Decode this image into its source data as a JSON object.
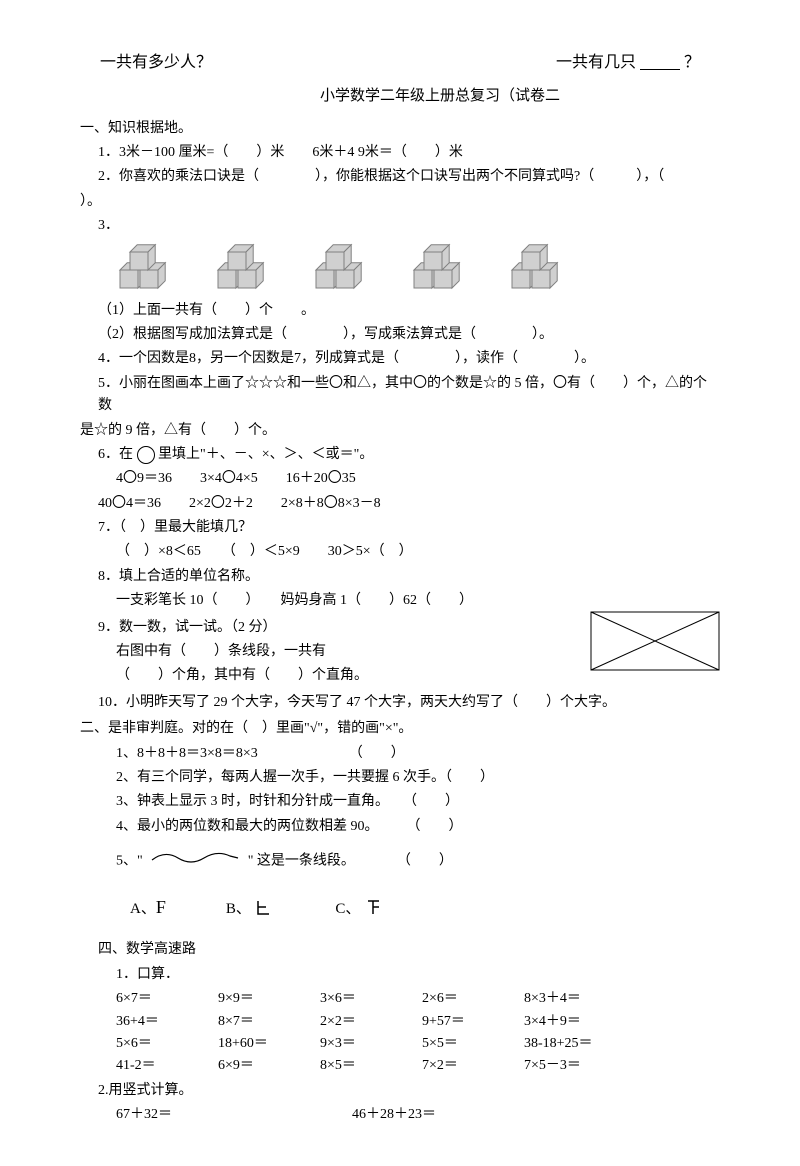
{
  "header": {
    "left": "一共有多少人？",
    "right_prefix": "一共有几只",
    "right_suffix": "？"
  },
  "title": "小学数学二年级上册总复习（试卷二",
  "section1": {
    "heading": "一、知识根据地。",
    "q1": "1．3米－100 厘米=（　　）米　　6米＋4 9米＝（　　）米",
    "q2_a": "2．你喜欢的乘法口诀是（　　　　），你能根据这个口诀写出两个不同算式吗?（　　　），（",
    "q2_b": "）。",
    "q3_label": "3．",
    "q3_1": "（1）上面一共有（　　）个　　。",
    "q3_2": "（2）根据图写成加法算式是（　　　　），写成乘法算式是（　　　　）。",
    "q4": "4．一个因数是8，另一个因数是7，列成算式是（　　　　），读作（　　　　）。",
    "q5_a": "5．小丽在图画本上画了☆☆☆和一些〇和△，其中〇的个数是☆的 5 倍，〇有（　　）个，△的个数",
    "q5_b": "是☆的 9 倍，△有（　　）个。",
    "q6_label": "6．在 ",
    "q6_text": " 里填上\"＋、－、×、＞、＜或＝\"。",
    "q6_row1": "4〇9＝36　　3×4〇4×5　　16＋20〇35",
    "q6_row2": "40〇4＝36　　2×2〇2＋2　　2×8＋8〇8×3－8",
    "q7_label": "7．（　）里最大能填几？",
    "q7_row": "（　）×8＜65　　（　）＜5×9　　30＞5×（　）",
    "q8_label": "8．填上合适的单位名称。",
    "q8_row": "一支彩笔长 10（　　）　　妈妈身高 1（　　）62（　　）",
    "q9_label": "9．数一数，试一试。（2 分）",
    "q9_row1": "右图中有（　　）条线段，一共有",
    "q9_row2": "（　　）个角，其中有（　　）个直角。",
    "q10": "10．小明昨天写了 29 个大字，今天写了 47 个大字，两天大约写了（　　）个大字。"
  },
  "section2": {
    "heading": "二、是非审判庭。对的在（　）里画\"√\"，错的画\"×\"。",
    "q1": "1、8＋8＋8＝3×8＝8×3　　　　　　　（　　）",
    "q2": "2、有三个同学，每两人握一次手，一共要握 6 次手。（　　）",
    "q3": "3、钟表上显示 3 时，时针和分针成一直角。　　（　　）",
    "q4": "4、最小的两位数和最大的两位数相差 90。　　　（　　）",
    "q5_a": "5、\"",
    "q5_b": "\" 这是一条线段。　　　　（　　）"
  },
  "section3": {
    "A_label": "A、",
    "A_letter": "F",
    "B_label": "B、",
    "C_label": "C、"
  },
  "section4": {
    "heading": "四、数学高速路",
    "sub1": "1．口算．",
    "row1": [
      "6×7＝",
      "9×9＝",
      "3×6＝",
      "2×6＝",
      "8×3＋4＝"
    ],
    "row2": [
      "36+4＝",
      "8×7＝",
      "2×2＝",
      "9+57＝",
      "3×4＋9＝"
    ],
    "row3": [
      "5×6＝",
      "18+60＝",
      "9×3＝",
      "5×5＝",
      "38-18+25＝"
    ],
    "row4": [
      "41-2＝",
      "6×9＝",
      "8×5＝",
      "7×2＝",
      "7×5－3＝"
    ],
    "sub2": "2.用竖式计算。",
    "vc1": "67＋32＝",
    "vc2": "46＋28＋23＝"
  },
  "cubes": {
    "fill": "#d0d0d0",
    "stroke": "#808080",
    "count": 5
  },
  "diagram": {
    "stroke": "#000000",
    "width": 130,
    "height": 60
  }
}
